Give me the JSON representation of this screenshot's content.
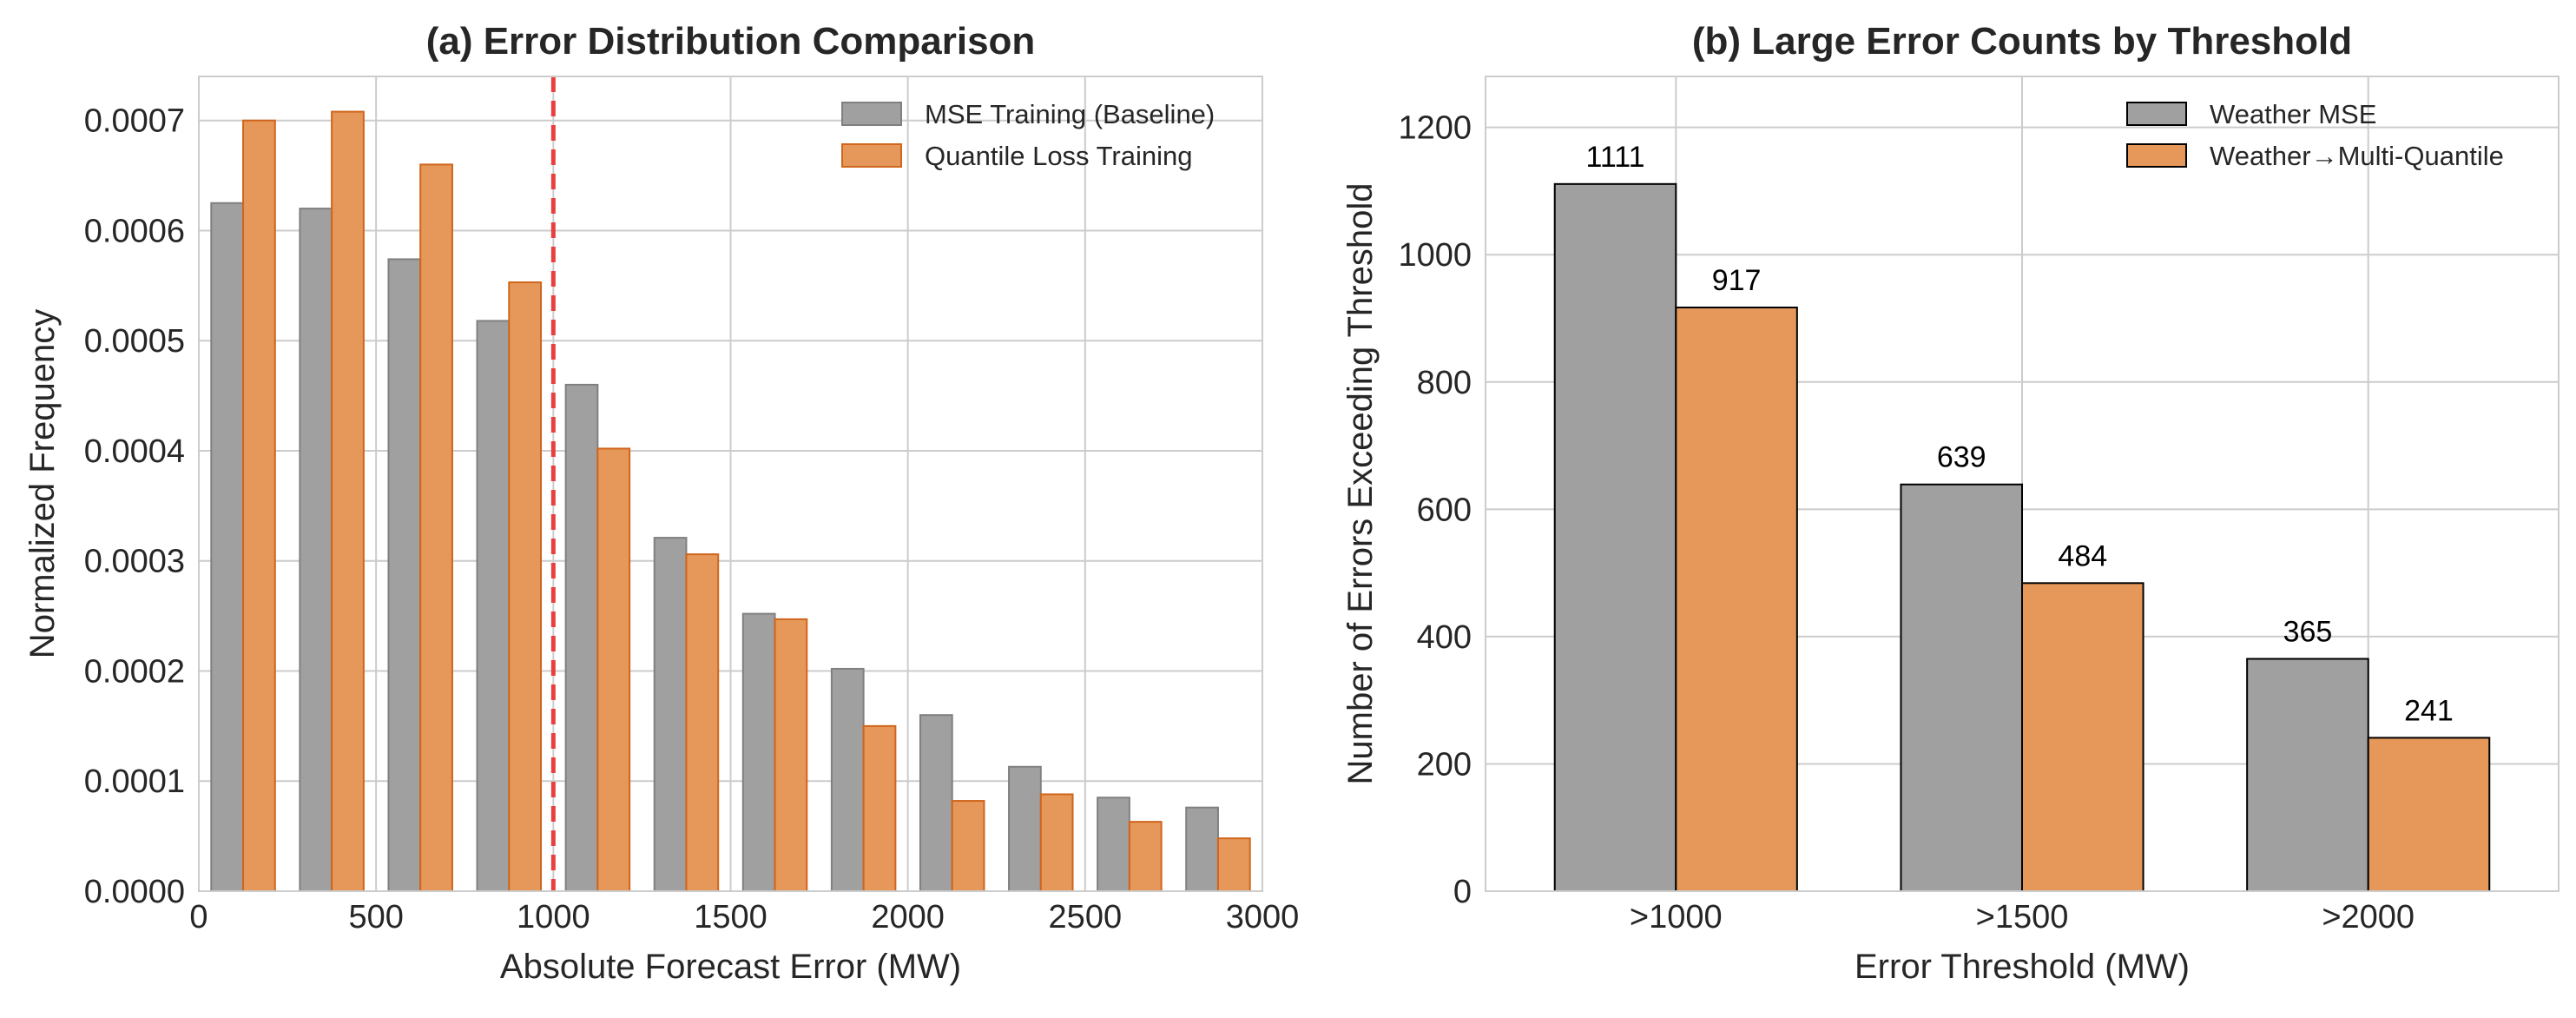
{
  "chart_data": [
    {
      "type": "bar",
      "title": "(a) Error Distribution Comparison",
      "xlabel": "Absolute Forecast Error (MW)",
      "ylabel": "Normalized Frequency",
      "xlim": [
        0,
        3000
      ],
      "ylim": [
        0,
        0.00074
      ],
      "xticks": [
        0,
        500,
        1000,
        1500,
        2000,
        2500,
        3000
      ],
      "yticks": [
        0.0,
        0.0001,
        0.0002,
        0.0003,
        0.0004,
        0.0005,
        0.0006,
        0.0007
      ],
      "ytick_format": "fixed4",
      "bin_width": 250,
      "bin_centers": [
        125,
        375,
        625,
        875,
        1125,
        1375,
        1625,
        1875,
        2125,
        2375,
        2625,
        2875
      ],
      "grid": true,
      "legend_position": "top-right",
      "reference_line": {
        "x": 1000,
        "style": "dashed",
        "color": "#e83f3f"
      },
      "series": [
        {
          "name": "MSE Training (Baseline)",
          "color": "#a0a0a0",
          "edge_color": "#808080",
          "values": [
            0.000625,
            0.00062,
            0.000574,
            0.000518,
            0.00046,
            0.000321,
            0.000252,
            0.000202,
            0.00016,
            0.000113,
            8.5e-05,
            7.6e-05
          ]
        },
        {
          "name": "Quantile Loss Training",
          "color": "#e5985a",
          "edge_color": "#d0651b",
          "values": [
            0.0007,
            0.000708,
            0.00066,
            0.000553,
            0.000402,
            0.000306,
            0.000247,
            0.00015,
            8.2e-05,
            8.8e-05,
            6.3e-05,
            4.8e-05
          ]
        }
      ]
    },
    {
      "type": "bar",
      "title": "(b) Large Error Counts by Threshold",
      "xlabel": "Error Threshold (MW)",
      "ylabel": "Number of Errors Exceeding Threshold",
      "categories": [
        ">1000",
        ">1500",
        ">2000"
      ],
      "ylim": [
        0,
        1200
      ],
      "yticks": [
        0,
        200,
        400,
        600,
        800,
        1000,
        1200
      ],
      "ytick_format": "int",
      "grid": true,
      "legend_position": "top-right",
      "show_value_labels": true,
      "series": [
        {
          "name": "Weather MSE",
          "color": "#a0a0a0",
          "edge_color": "#000000",
          "values": [
            1111,
            639,
            365
          ]
        },
        {
          "name": "Weather→Multi-Quantile",
          "color": "#e5985a",
          "edge_color": "#000000",
          "values": [
            917,
            484,
            241
          ]
        }
      ]
    }
  ]
}
